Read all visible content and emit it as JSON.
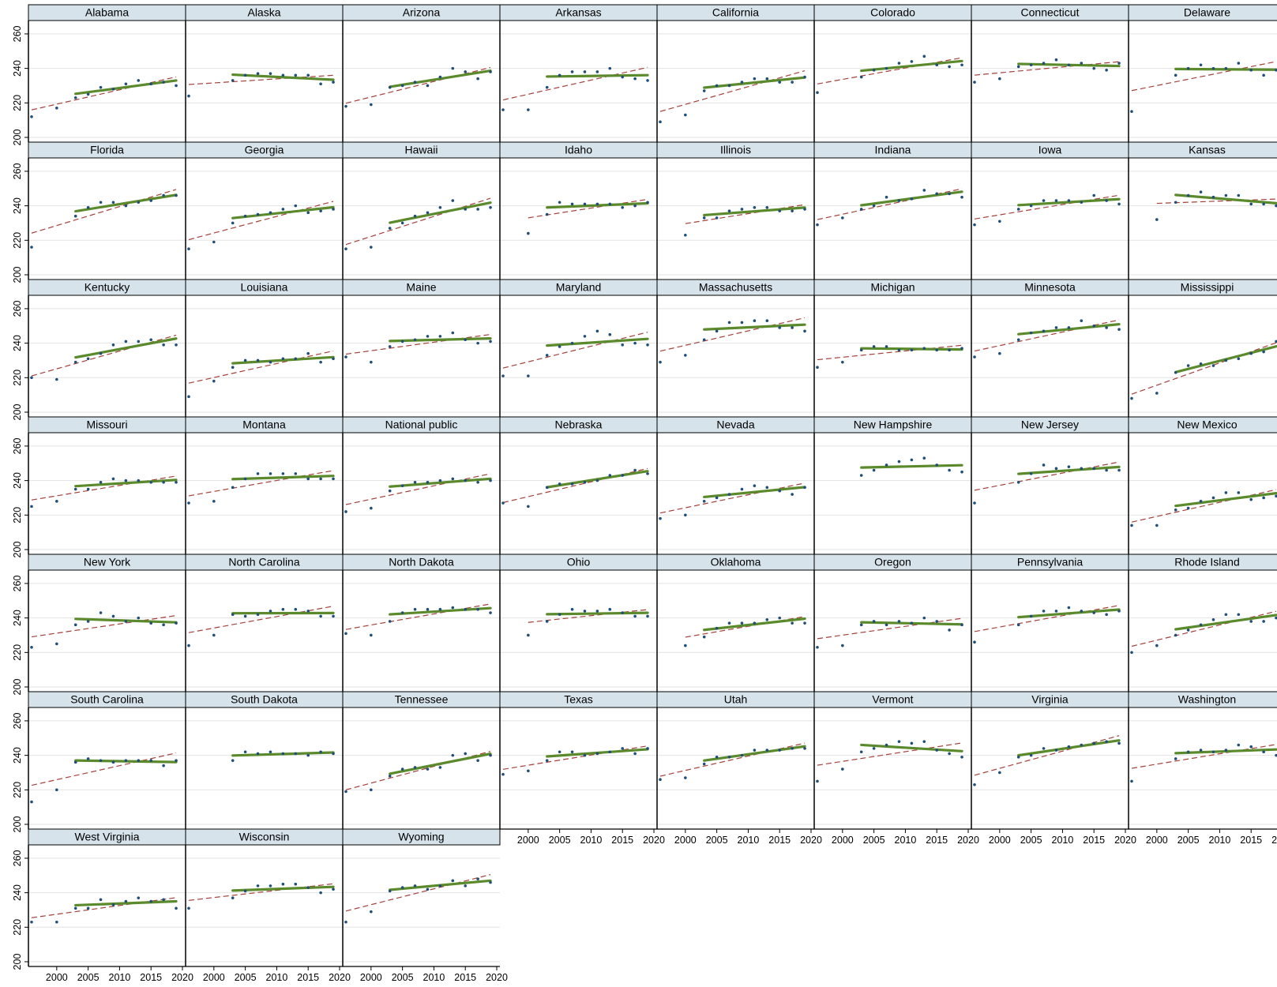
{
  "chart_data": {
    "type": "scatter",
    "layout": "small-multiples",
    "ncols": 8,
    "x_range": [
      1996,
      2020
    ],
    "y_range": [
      200,
      265
    ],
    "x_ticks": [
      2000,
      2005,
      2010,
      2015,
      2020
    ],
    "y_ticks": [
      200,
      220,
      240,
      260
    ],
    "x_tick_labels": [
      "2000",
      "2005",
      "2010",
      "2015",
      "2020"
    ],
    "y_tick_labels": [
      "200",
      "220",
      "240",
      "260"
    ],
    "grid": true,
    "years": [
      1996,
      2000,
      2003,
      2005,
      2007,
      2009,
      2011,
      2013,
      2015,
      2017,
      2019
    ],
    "colors": {
      "points": "#1f4e79",
      "fit_post2003": "#5a8a2b",
      "fit_all": "#a5403a",
      "strip": "#d6e3eb",
      "frame": "#000000",
      "grid": "#e3e3e3"
    },
    "panels": [
      {
        "name": "Alabama",
        "values": [
          212,
          217,
          223,
          225,
          229,
          228,
          231,
          233,
          231,
          232,
          230
        ]
      },
      {
        "name": "Alaska",
        "values": [
          224,
          null,
          233,
          236,
          237,
          237,
          236,
          236,
          236,
          231,
          232
        ]
      },
      {
        "name": "Arizona",
        "values": [
          218,
          219,
          229,
          230,
          232,
          230,
          235,
          240,
          238,
          234,
          238
        ]
      },
      {
        "name": "Arkansas",
        "values": [
          216,
          216,
          229,
          236,
          238,
          238,
          238,
          240,
          235,
          234,
          233
        ]
      },
      {
        "name": "California",
        "values": [
          209,
          213,
          227,
          230,
          230,
          232,
          234,
          234,
          232,
          232,
          235
        ]
      },
      {
        "name": "Colorado",
        "values": [
          226,
          null,
          235,
          239,
          240,
          243,
          244,
          247,
          242,
          241,
          242
        ]
      },
      {
        "name": "Connecticut",
        "values": [
          232,
          234,
          241,
          242,
          243,
          245,
          242,
          243,
          240,
          239,
          243
        ]
      },
      {
        "name": "Delaware",
        "values": [
          215,
          null,
          236,
          240,
          242,
          240,
          240,
          243,
          239,
          236,
          239
        ]
      },
      {
        "name": "Florida",
        "values": [
          216,
          null,
          234,
          239,
          242,
          242,
          240,
          242,
          243,
          246,
          246
        ]
      },
      {
        "name": "Georgia",
        "values": [
          215,
          219,
          230,
          234,
          235,
          236,
          238,
          240,
          236,
          237,
          238
        ]
      },
      {
        "name": "Hawaii",
        "values": [
          215,
          216,
          227,
          230,
          234,
          236,
          239,
          243,
          238,
          238,
          239
        ]
      },
      {
        "name": "Idaho",
        "values": [
          null,
          224,
          235,
          242,
          241,
          241,
          241,
          241,
          239,
          240,
          242
        ]
      },
      {
        "name": "Illinois",
        "values": [
          null,
          223,
          233,
          233,
          237,
          238,
          239,
          239,
          237,
          237,
          238
        ]
      },
      {
        "name": "Indiana",
        "values": [
          229,
          233,
          238,
          240,
          245,
          243,
          244,
          249,
          247,
          247,
          245
        ]
      },
      {
        "name": "Iowa",
        "values": [
          229,
          231,
          238,
          240,
          243,
          243,
          243,
          242,
          246,
          243,
          241
        ]
      },
      {
        "name": "Kansas",
        "values": [
          null,
          232,
          242,
          246,
          248,
          245,
          246,
          246,
          241,
          241,
          240
        ]
      },
      {
        "name": "Kentucky",
        "values": [
          220,
          219,
          229,
          231,
          234,
          239,
          241,
          241,
          242,
          239,
          239
        ]
      },
      {
        "name": "Louisiana",
        "values": [
          209,
          218,
          226,
          230,
          230,
          229,
          231,
          231,
          234,
          229,
          231
        ]
      },
      {
        "name": "Maine",
        "values": [
          232,
          229,
          238,
          241,
          242,
          244,
          244,
          246,
          242,
          240,
          241
        ]
      },
      {
        "name": "Maryland",
        "values": [
          221,
          221,
          233,
          238,
          240,
          244,
          247,
          245,
          239,
          240,
          239
        ]
      },
      {
        "name": "Massachusetts",
        "values": [
          229,
          233,
          242,
          247,
          252,
          252,
          253,
          253,
          249,
          249,
          247
        ]
      },
      {
        "name": "Michigan",
        "values": [
          226,
          229,
          236,
          238,
          238,
          236,
          236,
          237,
          236,
          236,
          237
        ]
      },
      {
        "name": "Minnesota",
        "values": [
          232,
          234,
          242,
          246,
          247,
          249,
          249,
          253,
          250,
          249,
          248
        ]
      },
      {
        "name": "Mississippi",
        "values": [
          208,
          211,
          223,
          227,
          228,
          227,
          230,
          231,
          234,
          235,
          241
        ]
      },
      {
        "name": "Missouri",
        "values": [
          225,
          228,
          235,
          235,
          239,
          241,
          240,
          240,
          239,
          239,
          239
        ]
      },
      {
        "name": "Montana",
        "values": [
          227,
          228,
          236,
          241,
          244,
          244,
          244,
          244,
          241,
          241,
          241
        ]
      },
      {
        "name": "National public",
        "values": [
          222,
          224,
          234,
          237,
          239,
          239,
          240,
          241,
          240,
          239,
          240
        ]
      },
      {
        "name": "Nebraska",
        "values": [
          227,
          225,
          236,
          238,
          238,
          239,
          240,
          243,
          243,
          246,
          244
        ]
      },
      {
        "name": "Nevada",
        "values": [
          218,
          220,
          228,
          230,
          232,
          235,
          237,
          236,
          234,
          232,
          236
        ]
      },
      {
        "name": "New Hampshire",
        "values": [
          null,
          null,
          243,
          246,
          249,
          251,
          252,
          253,
          249,
          246,
          245
        ]
      },
      {
        "name": "New Jersey",
        "values": [
          227,
          null,
          239,
          244,
          249,
          247,
          248,
          247,
          247,
          246,
          246
        ]
      },
      {
        "name": "New Mexico",
        "values": [
          214,
          214,
          223,
          224,
          228,
          230,
          233,
          233,
          229,
          230,
          231
        ]
      },
      {
        "name": "New York",
        "values": [
          223,
          225,
          236,
          238,
          243,
          241,
          238,
          240,
          237,
          236,
          237
        ]
      },
      {
        "name": "North Carolina",
        "values": [
          224,
          230,
          242,
          241,
          242,
          244,
          245,
          245,
          244,
          241,
          241
        ]
      },
      {
        "name": "North Dakota",
        "values": [
          231,
          230,
          238,
          243,
          245,
          245,
          245,
          246,
          245,
          245,
          243
        ]
      },
      {
        "name": "Ohio",
        "values": [
          null,
          230,
          238,
          242,
          245,
          244,
          244,
          245,
          243,
          241,
          241
        ]
      },
      {
        "name": "Oklahoma",
        "values": [
          null,
          224,
          229,
          234,
          237,
          237,
          237,
          239,
          240,
          237,
          237
        ]
      },
      {
        "name": "Oregon",
        "values": [
          223,
          224,
          236,
          238,
          236,
          238,
          237,
          240,
          238,
          233,
          236
        ]
      },
      {
        "name": "Pennsylvania",
        "values": [
          226,
          null,
          236,
          241,
          244,
          244,
          246,
          244,
          243,
          242,
          244
        ]
      },
      {
        "name": "Rhode Island",
        "values": [
          220,
          224,
          230,
          233,
          236,
          239,
          242,
          242,
          238,
          238,
          240
        ]
      },
      {
        "name": "South Carolina",
        "values": [
          213,
          220,
          236,
          238,
          237,
          236,
          237,
          237,
          237,
          234,
          237
        ]
      },
      {
        "name": "South Dakota",
        "values": [
          null,
          null,
          237,
          242,
          241,
          242,
          241,
          241,
          240,
          242,
          241
        ]
      },
      {
        "name": "Tennessee",
        "values": [
          219,
          220,
          228,
          232,
          233,
          232,
          233,
          240,
          241,
          237,
          240
        ]
      },
      {
        "name": "Texas",
        "values": [
          229,
          231,
          237,
          242,
          242,
          240,
          241,
          242,
          244,
          241,
          244
        ]
      },
      {
        "name": "Utah",
        "values": [
          226,
          227,
          235,
          239,
          239,
          240,
          243,
          243,
          243,
          244,
          244
        ]
      },
      {
        "name": "Vermont",
        "values": [
          225,
          232,
          242,
          244,
          246,
          248,
          247,
          248,
          243,
          241,
          239
        ]
      },
      {
        "name": "Virginia",
        "values": [
          223,
          230,
          239,
          240,
          244,
          243,
          245,
          246,
          247,
          248,
          247
        ]
      },
      {
        "name": "Washington",
        "values": [
          225,
          null,
          238,
          242,
          243,
          242,
          243,
          246,
          245,
          242,
          240
        ]
      },
      {
        "name": "West Virginia",
        "values": [
          223,
          223,
          231,
          231,
          236,
          233,
          235,
          237,
          235,
          236,
          231
        ]
      },
      {
        "name": "Wisconsin",
        "values": [
          231,
          null,
          237,
          241,
          244,
          244,
          245,
          245,
          243,
          240,
          242
        ]
      },
      {
        "name": "Wyoming",
        "values": [
          223,
          229,
          241,
          243,
          244,
          242,
          244,
          247,
          244,
          248,
          246
        ]
      }
    ]
  }
}
